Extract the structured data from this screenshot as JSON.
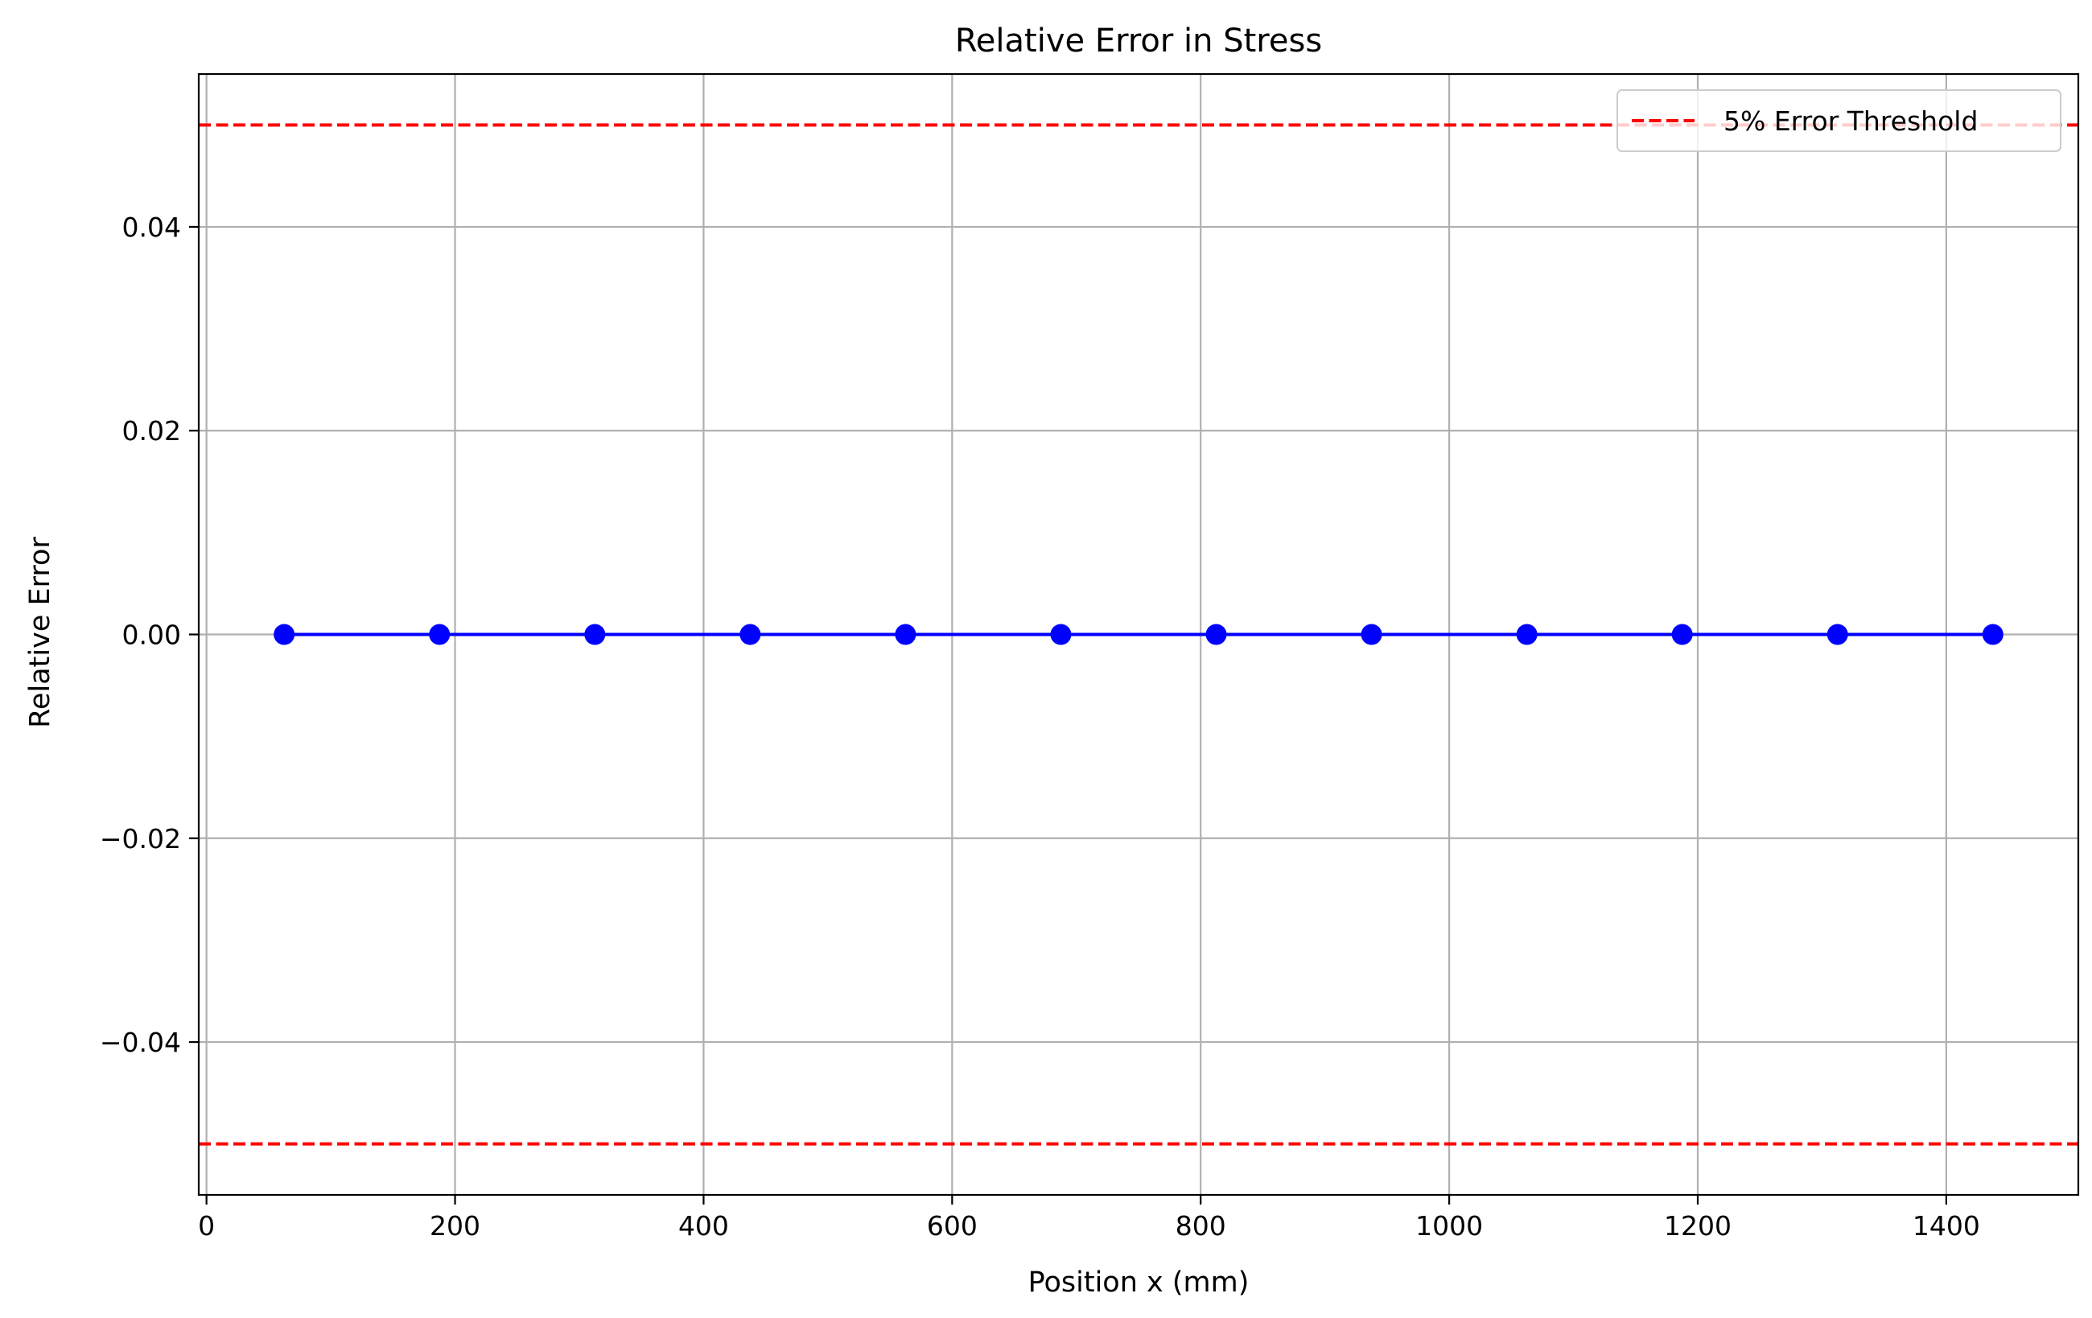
{
  "chart_data": {
    "type": "line",
    "title": "Relative Error in Stress",
    "xlabel": "Position x (mm)",
    "ylabel": "Relative Error",
    "xlim": [
      -6.25,
      1506.25
    ],
    "ylim": [
      -0.055,
      0.055
    ],
    "x_ticks": [
      0,
      200,
      400,
      600,
      800,
      1000,
      1200,
      1400
    ],
    "x_tick_labels": [
      "0",
      "200",
      "400",
      "600",
      "800",
      "1000",
      "1200",
      "1400"
    ],
    "y_ticks": [
      -0.04,
      -0.02,
      0.0,
      0.02,
      0.04
    ],
    "y_tick_labels": [
      "−0.04",
      "−0.02",
      "0.00",
      "0.02",
      "0.04"
    ],
    "grid": true,
    "legend_position": "top-right",
    "series": [
      {
        "color": "#0000ff",
        "marker": "circle",
        "x": [
          62.5,
          187.5,
          312.5,
          437.5,
          562.5,
          687.5,
          812.5,
          937.5,
          1062.5,
          1187.5,
          1312.5,
          1437.5
        ],
        "y": [
          0,
          0,
          0,
          0,
          0,
          0,
          0,
          0,
          0,
          0,
          0,
          0
        ]
      }
    ],
    "reference_lines": [
      {
        "name": "5% Error Threshold",
        "y": 0.05,
        "color": "#ff0000",
        "style": "dashed"
      },
      {
        "y": -0.05,
        "color": "#ff0000",
        "style": "dashed"
      }
    ]
  }
}
